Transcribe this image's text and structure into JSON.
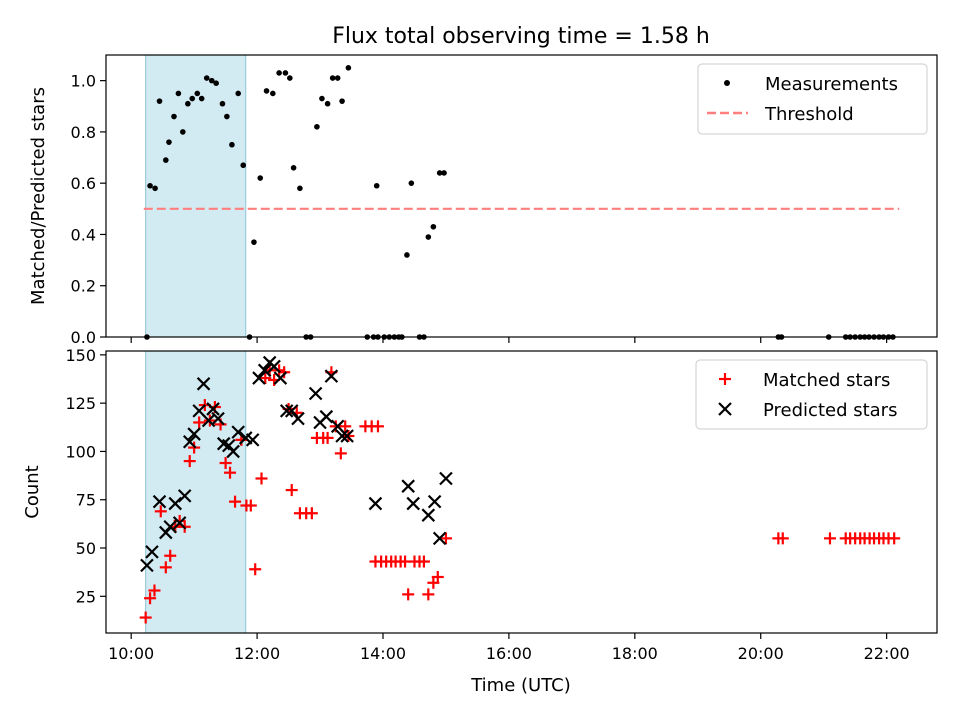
{
  "chart_data": [
    {
      "type": "scatter",
      "title": "Flux total observing time = 1.58 h",
      "xlabel": "",
      "ylabel": "Matched/Predicted stars",
      "xlim": [
        9.6,
        22.8
      ],
      "ylim": [
        0,
        1.1
      ],
      "yticks": [
        "0.0",
        "0.2",
        "0.4",
        "0.6",
        "0.8",
        "1.0"
      ],
      "ytick_values": [
        0,
        0.2,
        0.4,
        0.6,
        0.8,
        1.0
      ],
      "shaded_span": [
        10.23,
        11.82
      ],
      "legend_position": "upper right",
      "legend": [
        "Measurements",
        "Threshold"
      ],
      "colors": {
        "shade": "#add8e6",
        "threshold": "#ff7f7f",
        "points": "#000000"
      },
      "series": [
        {
          "name": "Measurements",
          "marker": "dot",
          "points": [
            [
              10.25,
              0.0
            ],
            [
              10.3,
              0.59
            ],
            [
              10.38,
              0.58
            ],
            [
              10.45,
              0.92
            ],
            [
              10.55,
              0.69
            ],
            [
              10.6,
              0.76
            ],
            [
              10.68,
              0.86
            ],
            [
              10.75,
              0.95
            ],
            [
              10.82,
              0.8
            ],
            [
              10.9,
              0.91
            ],
            [
              10.97,
              0.93
            ],
            [
              11.05,
              0.95
            ],
            [
              11.12,
              0.93
            ],
            [
              11.2,
              1.01
            ],
            [
              11.28,
              1.0
            ],
            [
              11.35,
              0.99
            ],
            [
              11.45,
              0.91
            ],
            [
              11.52,
              0.86
            ],
            [
              11.6,
              0.75
            ],
            [
              11.7,
              0.95
            ],
            [
              11.78,
              0.67
            ],
            [
              11.88,
              0.0
            ],
            [
              11.95,
              0.37
            ],
            [
              12.05,
              0.62
            ],
            [
              12.15,
              0.96
            ],
            [
              12.25,
              0.95
            ],
            [
              12.35,
              1.03
            ],
            [
              12.45,
              1.03
            ],
            [
              12.52,
              1.01
            ],
            [
              12.58,
              0.66
            ],
            [
              12.68,
              0.58
            ],
            [
              12.78,
              0.0
            ],
            [
              12.85,
              0.0
            ],
            [
              12.95,
              0.82
            ],
            [
              13.03,
              0.93
            ],
            [
              13.12,
              0.91
            ],
            [
              13.2,
              1.01
            ],
            [
              13.28,
              1.01
            ],
            [
              13.35,
              0.92
            ],
            [
              13.45,
              1.05
            ],
            [
              13.75,
              0.0
            ],
            [
              13.85,
              0.0
            ],
            [
              13.92,
              0.0
            ],
            [
              13.9,
              0.59
            ],
            [
              14.02,
              0.0
            ],
            [
              14.1,
              0.0
            ],
            [
              14.18,
              0.0
            ],
            [
              14.25,
              0.0
            ],
            [
              14.3,
              0.0
            ],
            [
              14.38,
              0.32
            ],
            [
              14.45,
              0.6
            ],
            [
              14.58,
              0.0
            ],
            [
              14.65,
              0.0
            ],
            [
              14.72,
              0.39
            ],
            [
              14.8,
              0.43
            ],
            [
              14.9,
              0.64
            ],
            [
              14.97,
              0.64
            ],
            [
              20.28,
              0.0
            ],
            [
              20.33,
              0.0
            ],
            [
              21.08,
              0.0
            ],
            [
              21.35,
              0.0
            ],
            [
              21.42,
              0.0
            ],
            [
              21.5,
              0.0
            ],
            [
              21.58,
              0.0
            ],
            [
              21.65,
              0.0
            ],
            [
              21.72,
              0.0
            ],
            [
              21.8,
              0.0
            ],
            [
              21.88,
              0.0
            ],
            [
              21.95,
              0.0
            ],
            [
              22.03,
              0.0
            ],
            [
              22.1,
              0.0
            ]
          ]
        },
        {
          "name": "Threshold",
          "marker": "dashed-line",
          "points": [
            [
              10.2,
              0.5
            ],
            [
              22.2,
              0.5
            ]
          ]
        }
      ]
    },
    {
      "type": "scatter",
      "title": "",
      "xlabel": "Time (UTC)",
      "ylabel": "Count",
      "xlim": [
        9.6,
        22.8
      ],
      "ylim": [
        6,
        152
      ],
      "yticks": [
        "25",
        "50",
        "75",
        "100",
        "125",
        "150"
      ],
      "ytick_values": [
        25,
        50,
        75,
        100,
        125,
        150
      ],
      "xticks": [
        "10:00",
        "12:00",
        "14:00",
        "16:00",
        "18:00",
        "20:00",
        "22:00"
      ],
      "xtick_values": [
        10,
        12,
        14,
        16,
        18,
        20,
        22
      ],
      "shaded_span": [
        10.23,
        11.82
      ],
      "legend_position": "upper right",
      "legend": [
        "Matched stars",
        "Predicted stars"
      ],
      "colors": {
        "shade": "#add8e6",
        "matched": "#ff0000",
        "predicted": "#000000"
      },
      "series": [
        {
          "name": "Matched stars",
          "marker": "plus",
          "points": [
            [
              10.23,
              14
            ],
            [
              10.3,
              24
            ],
            [
              10.37,
              28
            ],
            [
              10.47,
              69
            ],
            [
              10.55,
              40
            ],
            [
              10.62,
              46
            ],
            [
              10.7,
              61
            ],
            [
              10.77,
              64
            ],
            [
              10.85,
              61
            ],
            [
              10.93,
              95
            ],
            [
              11.0,
              102
            ],
            [
              11.08,
              115
            ],
            [
              11.17,
              124
            ],
            [
              11.25,
              116
            ],
            [
              11.33,
              123
            ],
            [
              11.42,
              114
            ],
            [
              11.5,
              94
            ],
            [
              11.57,
              89
            ],
            [
              11.65,
              74
            ],
            [
              11.75,
              106
            ],
            [
              11.83,
              72
            ],
            [
              11.9,
              72
            ],
            [
              11.97,
              39
            ],
            [
              12.07,
              86
            ],
            [
              12.13,
              138
            ],
            [
              12.2,
              142
            ],
            [
              12.27,
              137
            ],
            [
              12.35,
              142
            ],
            [
              12.43,
              141
            ],
            [
              12.5,
              122
            ],
            [
              12.55,
              80
            ],
            [
              12.63,
              120
            ],
            [
              12.68,
              68
            ],
            [
              12.78,
              68
            ],
            [
              12.87,
              68
            ],
            [
              12.95,
              107
            ],
            [
              13.05,
              107
            ],
            [
              13.12,
              107
            ],
            [
              13.18,
              141
            ],
            [
              13.25,
              113
            ],
            [
              13.33,
              99
            ],
            [
              13.4,
              113
            ],
            [
              13.45,
              108
            ],
            [
              13.72,
              113
            ],
            [
              13.82,
              113
            ],
            [
              13.92,
              113
            ],
            [
              13.88,
              43
            ],
            [
              13.97,
              43
            ],
            [
              14.05,
              43
            ],
            [
              14.13,
              43
            ],
            [
              14.2,
              43
            ],
            [
              14.28,
              43
            ],
            [
              14.35,
              43
            ],
            [
              14.4,
              26
            ],
            [
              14.5,
              43
            ],
            [
              14.58,
              43
            ],
            [
              14.65,
              43
            ],
            [
              14.72,
              26
            ],
            [
              14.8,
              32
            ],
            [
              14.87,
              35
            ],
            [
              15.0,
              55
            ],
            [
              20.28,
              55
            ],
            [
              20.35,
              55
            ],
            [
              21.1,
              55
            ],
            [
              21.35,
              55
            ],
            [
              21.42,
              55
            ],
            [
              21.5,
              55
            ],
            [
              21.58,
              55
            ],
            [
              21.65,
              55
            ],
            [
              21.73,
              55
            ],
            [
              21.8,
              55
            ],
            [
              21.88,
              55
            ],
            [
              21.95,
              55
            ],
            [
              22.03,
              55
            ],
            [
              22.12,
              55
            ]
          ]
        },
        {
          "name": "Predicted stars",
          "marker": "x",
          "points": [
            [
              10.25,
              41
            ],
            [
              10.33,
              48
            ],
            [
              10.45,
              74
            ],
            [
              10.55,
              58
            ],
            [
              10.62,
              61
            ],
            [
              10.7,
              73
            ],
            [
              10.77,
              63
            ],
            [
              10.85,
              77
            ],
            [
              10.93,
              105
            ],
            [
              11.0,
              109
            ],
            [
              11.08,
              121
            ],
            [
              11.15,
              135
            ],
            [
              11.23,
              116
            ],
            [
              11.3,
              122
            ],
            [
              11.38,
              117
            ],
            [
              11.47,
              104
            ],
            [
              11.55,
              103
            ],
            [
              11.62,
              100
            ],
            [
              11.7,
              110
            ],
            [
              11.82,
              107
            ],
            [
              11.93,
              106
            ],
            [
              12.03,
              138
            ],
            [
              12.12,
              142
            ],
            [
              12.2,
              146
            ],
            [
              12.27,
              144
            ],
            [
              12.37,
              138
            ],
            [
              12.47,
              121
            ],
            [
              12.55,
              121
            ],
            [
              12.65,
              117
            ],
            [
              12.93,
              130
            ],
            [
              13.0,
              115
            ],
            [
              13.1,
              118
            ],
            [
              13.18,
              139
            ],
            [
              13.28,
              113
            ],
            [
              13.35,
              108
            ],
            [
              13.43,
              108
            ],
            [
              13.88,
              73
            ],
            [
              14.4,
              82
            ],
            [
              14.48,
              73
            ],
            [
              14.72,
              67
            ],
            [
              14.82,
              74
            ],
            [
              14.9,
              55
            ],
            [
              15.0,
              86
            ]
          ]
        }
      ]
    }
  ]
}
